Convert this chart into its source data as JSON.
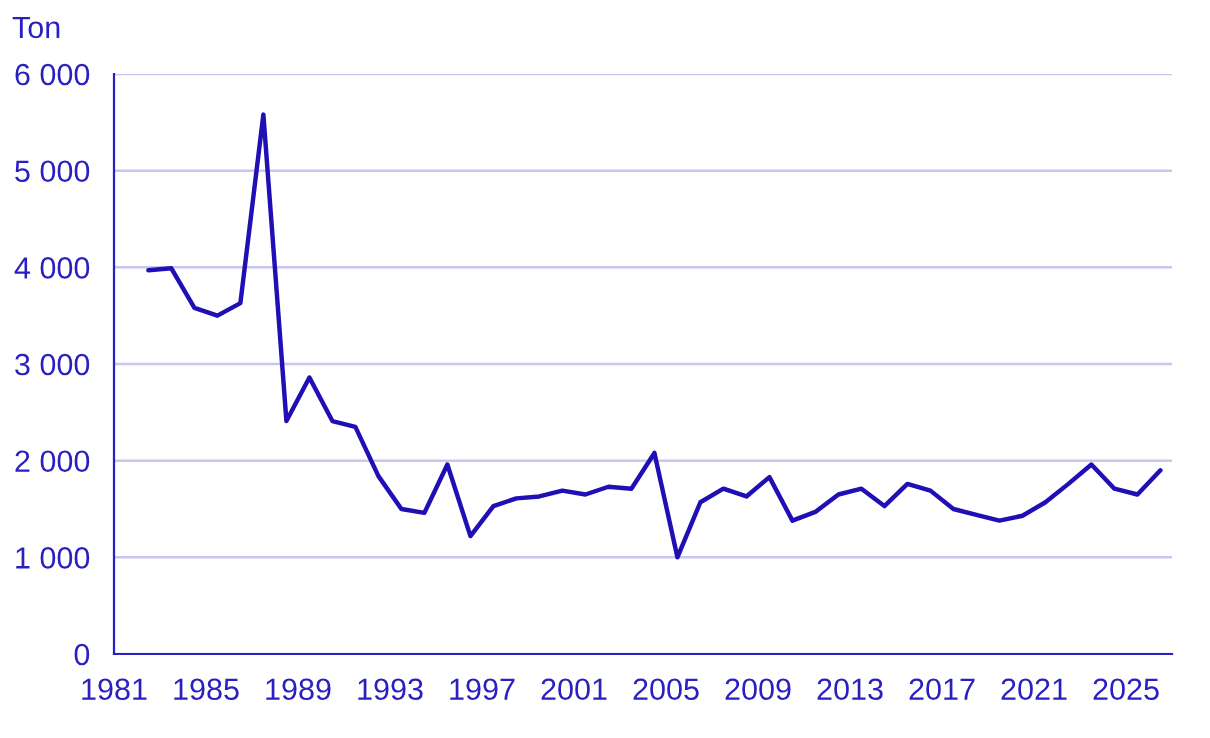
{
  "chart_data": {
    "type": "line",
    "ylabel": "Ton",
    "x": [
      "1982-07",
      "1983-07",
      "1984-07",
      "1985-07",
      "1986-07",
      "1987-07",
      "1988-07",
      "1989-07",
      "1990-07",
      "1991-07",
      "1992-07",
      "1993-07",
      "1994-07",
      "1995-07",
      "1996-07",
      "1997-07",
      "1998-07",
      "1999-07",
      "2000-07",
      "2001-07",
      "2002-07",
      "2003-07",
      "2004-07",
      "2005-07",
      "2006-07",
      "2007-07",
      "2008-07",
      "2009-07",
      "2010-07",
      "2011-07",
      "2012-07",
      "2013-07",
      "2014-07",
      "2015-07",
      "2016-07",
      "2017-07",
      "2018-07",
      "2019-07",
      "2020-07",
      "2021-07",
      "2022-07",
      "2023-07",
      "2024-07",
      "2025-07",
      "2026-07"
    ],
    "series": [
      {
        "color": "#1f0fb5",
        "values": [
          3970,
          3990,
          3580,
          3500,
          3630,
          5580,
          2410,
          2860,
          2410,
          2350,
          1840,
          1500,
          1460,
          1960,
          1220,
          1530,
          1610,
          1630,
          1690,
          1650,
          1730,
          1710,
          2080,
          1000,
          1570,
          1710,
          1630,
          1830,
          1380,
          1470,
          1650,
          1710,
          1530,
          1760,
          1690,
          1500,
          1440,
          1380,
          1430,
          1570,
          1760,
          1960,
          1710,
          1650,
          1900
        ]
      }
    ],
    "xlim": [
      "1981",
      "2027"
    ],
    "xticks": [
      {
        "value": "1981",
        "label": "1981"
      },
      {
        "value": "1985",
        "label": "1985"
      },
      {
        "value": "1989",
        "label": "1989"
      },
      {
        "value": "1993",
        "label": "1993"
      },
      {
        "value": "1997",
        "label": "1997"
      },
      {
        "value": "2001",
        "label": "2001"
      },
      {
        "value": "2005",
        "label": "2005"
      },
      {
        "value": "2009",
        "label": "2009"
      },
      {
        "value": "2013",
        "label": "2013"
      },
      {
        "value": "2017",
        "label": "2017"
      },
      {
        "value": "2021",
        "label": "2021"
      },
      {
        "value": "2025",
        "label": "2025"
      }
    ],
    "ylim": [
      0,
      6000
    ],
    "yticks": [
      0,
      {
        "value": 1000,
        "label": "1 000"
      },
      {
        "value": 2000,
        "label": "2 000"
      },
      {
        "value": 3000,
        "label": "3 000"
      },
      {
        "value": 4000,
        "label": "4 000"
      },
      {
        "value": 5000,
        "label": "5 000"
      },
      {
        "value": 6000,
        "label": "6 000"
      }
    ],
    "grid": "y",
    "marker": "none",
    "line_style": "solid"
  }
}
